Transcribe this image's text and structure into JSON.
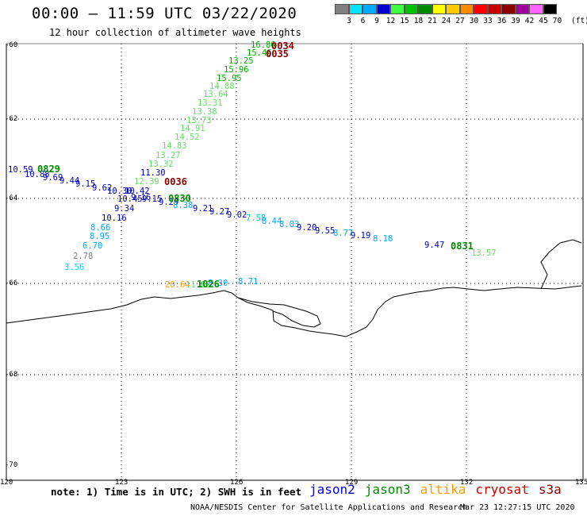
{
  "header": {
    "title": "00:00 – 11:59 UTC 03/22/2020",
    "subtitle": "12 hour collection of altimeter wave heights"
  },
  "colorbar": {
    "colors": [
      "#808080",
      "#00e5ff",
      "#00aaff",
      "#0000d0",
      "#40ff40",
      "#00c000",
      "#008a00",
      "#ffff00",
      "#ffcc00",
      "#ff8c00",
      "#ff0000",
      "#c80000",
      "#8b0000",
      "#a000a0",
      "#ff66ff",
      "#000000"
    ],
    "labels": [
      "3",
      "6",
      "9",
      "12",
      "15",
      "18",
      "21",
      "24",
      "27",
      "30",
      "33",
      "36",
      "39",
      "42",
      "45",
      "70"
    ],
    "unit": "(ft)"
  },
  "axes": {
    "lat_labels": [
      "-60",
      "-62",
      "-64",
      "-66",
      "-68",
      "-70"
    ],
    "lon_labels": [
      "120",
      "123",
      "126",
      "129",
      "132",
      "135"
    ]
  },
  "observations": [
    {
      "text": "16.86",
      "color": "#00b000"
    },
    {
      "text": "15.46",
      "color": "#00b000"
    },
    {
      "text": "13.25",
      "color": "#00b000"
    },
    {
      "text": "15.96",
      "color": "#00b000"
    },
    {
      "text": "15.95",
      "color": "#00b000"
    },
    {
      "text": "14.88",
      "color": "#66dd66"
    },
    {
      "text": "13.64",
      "color": "#66dd66"
    },
    {
      "text": "13.31",
      "color": "#66dd66"
    },
    {
      "text": "13.38",
      "color": "#66dd66"
    },
    {
      "text": "13.73",
      "color": "#66dd66"
    },
    {
      "text": "14.91",
      "color": "#66dd66"
    },
    {
      "text": "14.52",
      "color": "#66dd66"
    },
    {
      "text": "14.83",
      "color": "#66dd66"
    },
    {
      "text": "13.27",
      "color": "#66dd66"
    },
    {
      "text": "13.32",
      "color": "#66dd66"
    },
    {
      "text": "11.30",
      "color": "#0000c0"
    },
    {
      "text": "12.39",
      "color": "#66dd66"
    },
    {
      "text": "10.59",
      "color": "#0000c0"
    },
    {
      "text": "10.88",
      "color": "#0000c0"
    },
    {
      "text": "9.69",
      "color": "#0000c0"
    },
    {
      "text": "9.44",
      "color": "#0000c0"
    },
    {
      "text": "9.15",
      "color": "#0000c0"
    },
    {
      "text": "9.62",
      "color": "#0000c0"
    },
    {
      "text": "10.30",
      "color": "#0000c0"
    },
    {
      "text": "10.42",
      "color": "#0000c0"
    },
    {
      "text": "10.45",
      "color": "#0000c0"
    },
    {
      "text": "9.16",
      "color": "#0000c0"
    },
    {
      "text": "9.15",
      "color": "#0000c0"
    },
    {
      "text": "9.29",
      "color": "#0000c0"
    },
    {
      "text": "8.38",
      "color": "#00a8ff"
    },
    {
      "text": "9.34",
      "color": "#0000c0"
    },
    {
      "text": "9.21",
      "color": "#0000c0"
    },
    {
      "text": "9.27",
      "color": "#0000c0"
    },
    {
      "text": "9.02",
      "color": "#0000c0"
    },
    {
      "text": "7.58",
      "color": "#00c8e0"
    },
    {
      "text": "8.44",
      "color": "#00a8ff"
    },
    {
      "text": "8.03",
      "color": "#00a8ff"
    },
    {
      "text": "9.20",
      "color": "#0000c0"
    },
    {
      "text": "9.55",
      "color": "#0000c0"
    },
    {
      "text": "8.77",
      "color": "#00a8ff"
    },
    {
      "text": "9.19",
      "color": "#0000c0"
    },
    {
      "text": "8.18",
      "color": "#00a8ff"
    },
    {
      "text": "10.16",
      "color": "#0000c0"
    },
    {
      "text": "8.66",
      "color": "#00a8ff"
    },
    {
      "text": "8.95",
      "color": "#00a8ff"
    },
    {
      "text": "6.70",
      "color": "#00a8ff"
    },
    {
      "text": "2.78",
      "color": "#808080"
    },
    {
      "text": "3.56",
      "color": "#00d8e8"
    },
    {
      "text": "9.47",
      "color": "#0000c0"
    },
    {
      "text": "13.57",
      "color": "#66dd66"
    },
    {
      "text": "20.64",
      "color": "#ff9900"
    },
    {
      "text": "11.82",
      "color": "#66dd66"
    },
    {
      "text": "8.30",
      "color": "#00a8ff"
    },
    {
      "text": "8.71",
      "color": "#00a8ff"
    }
  ],
  "time_markers": [
    {
      "text": "0034",
      "color": "#8b0000"
    },
    {
      "text": "0035",
      "color": "#8b0000"
    },
    {
      "text": "0829",
      "color": "#008a00"
    },
    {
      "text": "0036",
      "color": "#8b0000"
    },
    {
      "text": "0830",
      "color": "#008a00"
    },
    {
      "text": "0831",
      "color": "#008a00"
    },
    {
      "text": "1026",
      "color": "#008a00"
    }
  ],
  "footer": {
    "note": "note: 1) Time is in UTC; 2) SWH is in feet",
    "legend": [
      {
        "label": "jason2",
        "color": "#0000ff"
      },
      {
        "label": "jason3",
        "color": "#008a00"
      },
      {
        "label": "altika",
        "color": "#ff9900"
      },
      {
        "label": "cryosat",
        "color": "#d00000"
      },
      {
        "label": "s3a",
        "color": "#8b0000"
      }
    ],
    "credit": "NOAA/NESDIS Center for Satellite Applications and Research",
    "timestamp": "Mar 23 12:27:15 UTC 2020"
  }
}
